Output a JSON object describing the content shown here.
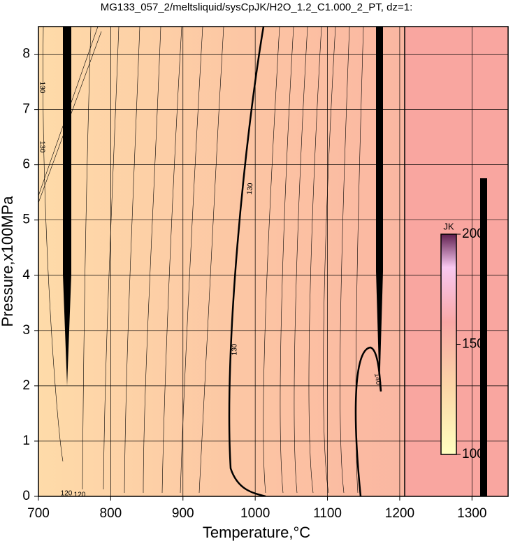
{
  "chart_data": {
    "type": "contour",
    "title": "MG133_057_2/meltsliquid/sysCpJK/H2O_1.2_C1.000_2_PT, dz=1:",
    "xlabel": "Temperature,°C",
    "ylabel": "Pressure,x100MPa",
    "xlim": [
      700,
      1350
    ],
    "ylim": [
      0,
      8.5
    ],
    "xticks": [
      700,
      800,
      900,
      1000,
      1100,
      1200,
      1300
    ],
    "yticks": [
      0,
      1,
      2,
      3,
      4,
      5,
      6,
      7,
      8
    ],
    "grid": true,
    "colorbar": {
      "label": "JK",
      "clim": [
        100,
        200
      ],
      "ticks": [
        100,
        150,
        200
      ]
    },
    "contour_labels": [
      130,
      130,
      130,
      130,
      140,
      120,
      120
    ]
  }
}
